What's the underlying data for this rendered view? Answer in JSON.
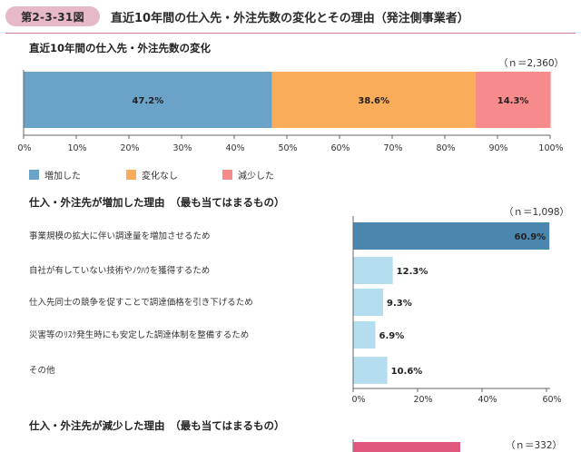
{
  "header": {
    "figure_number": "第2-3-31図",
    "title": "直近10年間の仕入先・外注先数の変化とその理由（発注側事業者）"
  },
  "chart_data": [
    {
      "type": "bar",
      "orientation": "horizontal-stacked",
      "title": "直近10年間の仕入先・外注先数の変化",
      "n_label": "（ｎ＝2,360）",
      "series": [
        {
          "name": "増加した",
          "value": 47.2,
          "label": "47.2%",
          "color": "#6aa2c8"
        },
        {
          "name": "変化なし",
          "value": 38.6,
          "label": "38.6%",
          "color": "#f9ac5a"
        },
        {
          "name": "減少した",
          "value": 14.3,
          "label": "14.3%",
          "color": "#f78b8b"
        }
      ],
      "xlim": [
        0,
        100
      ],
      "ticks": [
        "0%",
        "10%",
        "20%",
        "30%",
        "40%",
        "50%",
        "60%",
        "70%",
        "80%",
        "90%",
        "100%"
      ],
      "legend_position": "bottom-left"
    },
    {
      "type": "bar",
      "orientation": "horizontal",
      "title": "仕入・外注先が増加した理由　（最も当てはまるもの）",
      "n_label": "（ｎ＝1,098）",
      "categories": [
        "事業規模の拡大に伴い調達量を増加させるため",
        "自社が有していない技術やﾉｳﾊｳを獲得するため",
        "仕入先同士の競争を促すことで調達価格を引き下げるため",
        "災害等のﾘｽｸ発生時にも安定した調達体制を整備するため",
        "その他"
      ],
      "values": [
        60.9,
        12.3,
        9.3,
        6.9,
        10.6
      ],
      "value_labels": [
        "60.9%",
        "12.3%",
        "9.3%",
        "6.9%",
        "10.6%"
      ],
      "highlight_color": "#4a86ad",
      "bar_color": "#b4def0",
      "xlim": [
        0,
        60
      ],
      "ticks": [
        "0%",
        "20%",
        "40%",
        "60%"
      ]
    },
    {
      "type": "bar",
      "orientation": "horizontal",
      "title": "仕入・外注先が減少した理由　（最も当てはまるもの）",
      "n_label": "（ｎ＝332）",
      "bar_color": "#e0577e",
      "xlim": [
        0,
        60
      ]
    }
  ]
}
